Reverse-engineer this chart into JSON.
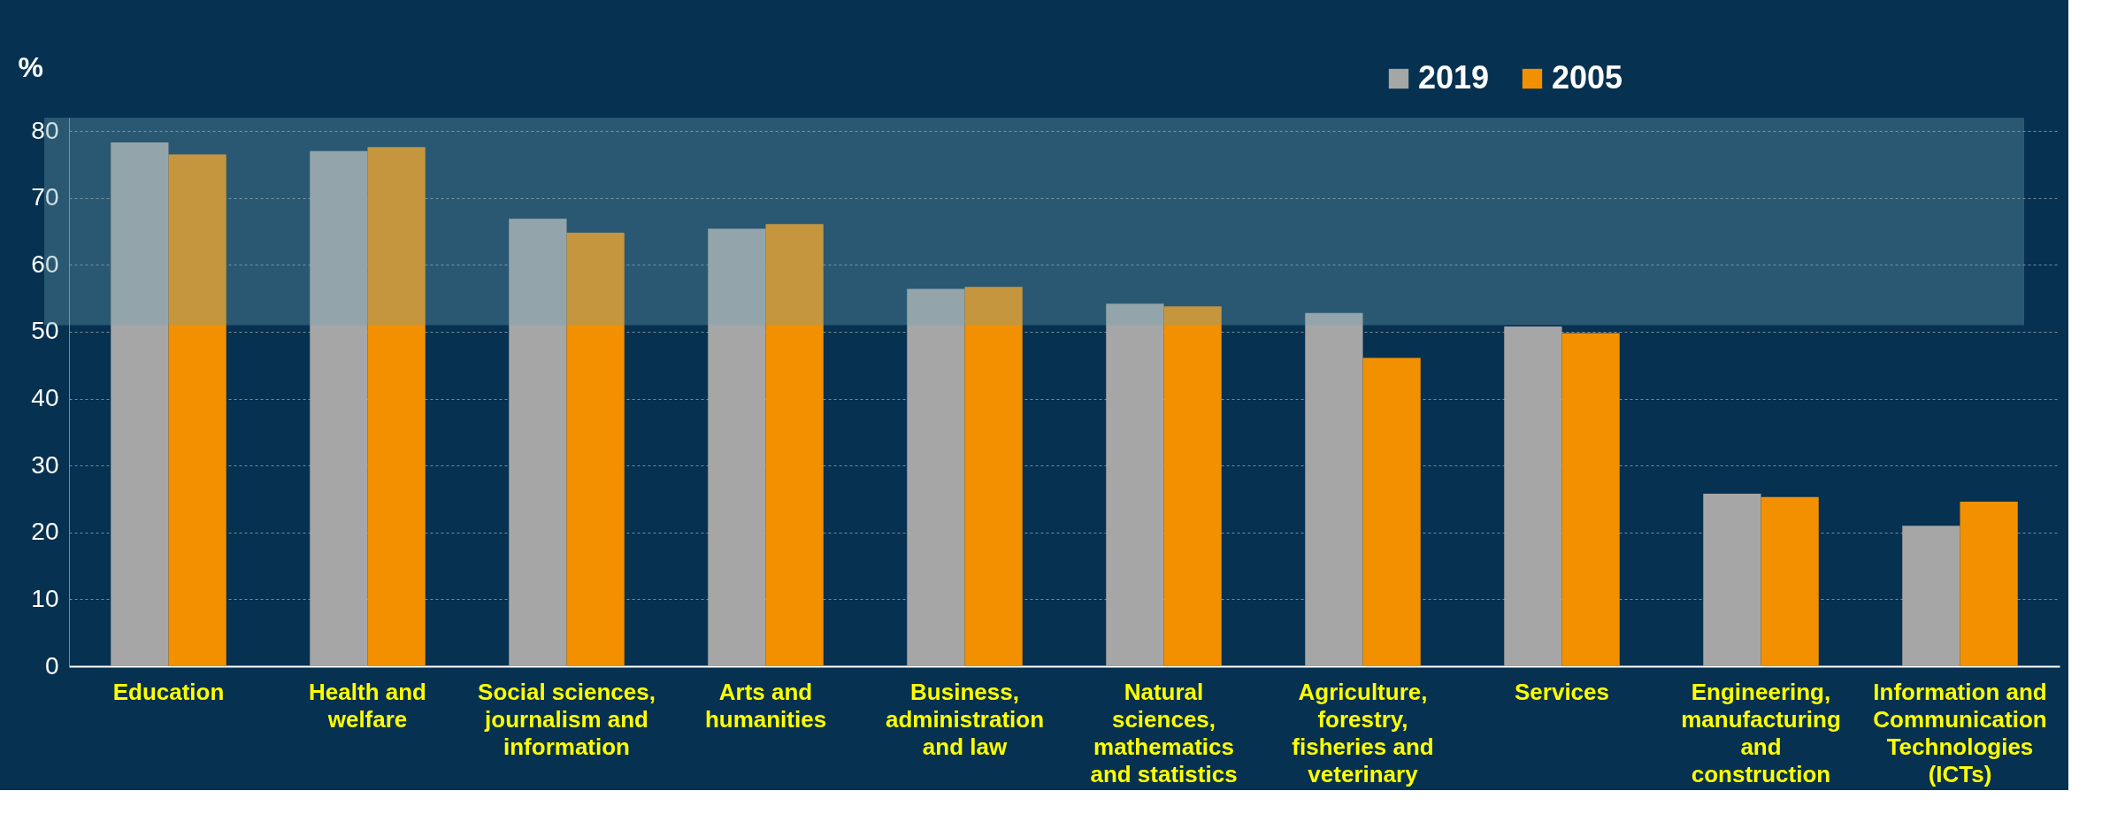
{
  "chart_data": {
    "type": "bar",
    "ylabel": "%",
    "categories": [
      "Education",
      "Health and\nwelfare",
      "Social sciences,\njournalism and\ninformation",
      "Arts and\nhumanities",
      "Business,\nadministration\nand law",
      "Natural\nsciences,\nmathematics\nand statistics",
      "Agriculture,\nforestry,\nfisheries and\nveterinary",
      "Services",
      "Engineering,\nmanufacturing\nand\nconstruction",
      "Information and\nCommunication\nTechnologies\n(ICTs)"
    ],
    "series": [
      {
        "name": "2019",
        "color": "#a6a6a6",
        "values": [
          78.3,
          77.0,
          66.9,
          65.4,
          56.4,
          54.2,
          52.8,
          50.8,
          25.8,
          21.0
        ]
      },
      {
        "name": "2005",
        "color": "#f39000",
        "values": [
          76.5,
          77.6,
          64.8,
          66.1,
          56.7,
          53.8,
          46.1,
          49.8,
          25.3,
          24.6
        ]
      }
    ],
    "ylim": [
      0,
      82
    ],
    "yticks": [
      0,
      10,
      20,
      30,
      40,
      50,
      60,
      70,
      80
    ],
    "bands": [
      {
        "axis": "y",
        "from": 51,
        "to": 82,
        "color": "#6fa3b3"
      }
    ],
    "grid": "y",
    "legend": "top right"
  }
}
